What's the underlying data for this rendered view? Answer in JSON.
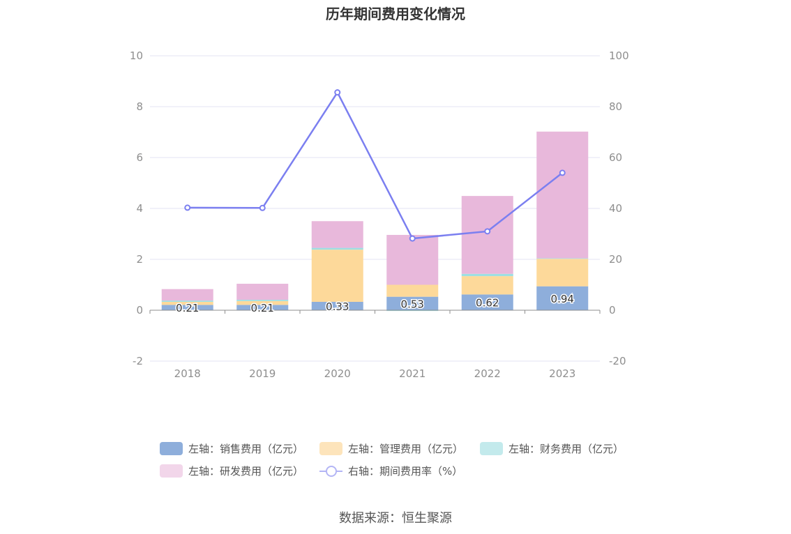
{
  "chart_data": {
    "type": "bar",
    "title": "历年期间费用变化情况",
    "categories": [
      "2018",
      "2019",
      "2020",
      "2021",
      "2022",
      "2023"
    ],
    "stacked": true,
    "left_axis": {
      "min": -2,
      "max": 10,
      "ticks": [
        -2,
        0,
        2,
        4,
        6,
        8,
        10
      ]
    },
    "right_axis": {
      "min": -20,
      "max": 100,
      "ticks": [
        -20,
        0,
        20,
        40,
        60,
        80,
        100
      ]
    },
    "series": [
      {
        "name": "左轴：销售费用（亿元）",
        "axis": "left",
        "type": "bar",
        "color": "#8eaedb",
        "values": [
          0.21,
          0.21,
          0.33,
          0.53,
          0.62,
          0.94
        ],
        "labels": [
          "0.21",
          "0.21",
          "0.33",
          "0.53",
          "0.62",
          "0.94"
        ]
      },
      {
        "name": "左轴：管理费用（亿元）",
        "axis": "left",
        "type": "bar",
        "color": "#fdd99a",
        "values": [
          0.12,
          0.15,
          2.05,
          0.47,
          0.72,
          1.08
        ]
      },
      {
        "name": "左轴：财务费用（亿元）",
        "axis": "left",
        "type": "bar",
        "color": "#9edfe3",
        "values": [
          0.05,
          0.05,
          0.07,
          -0.03,
          0.09,
          0.02
        ]
      },
      {
        "name": "左轴：研发费用（亿元）",
        "axis": "left",
        "type": "bar",
        "color": "#e8b8db",
        "values": [
          0.45,
          0.63,
          1.05,
          1.96,
          3.06,
          4.98
        ]
      },
      {
        "name": "右轴：期间费用率（%）",
        "axis": "right",
        "type": "line",
        "color": "#7b7ff0",
        "values": [
          40.3,
          40.2,
          85.6,
          28.2,
          31.0,
          54.0
        ]
      }
    ],
    "grid": true,
    "legend_position": "bottom"
  },
  "source": "数据来源：恒生聚源"
}
